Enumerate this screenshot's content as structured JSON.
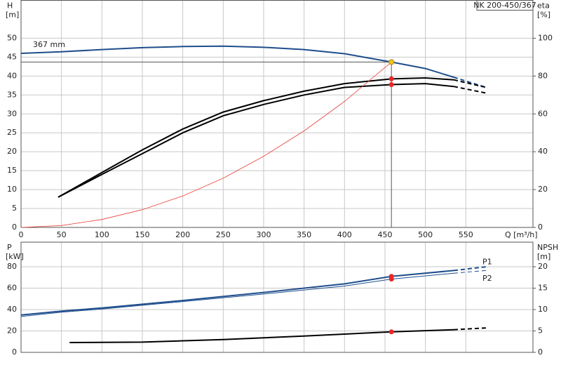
{
  "chart_data": [
    {
      "type": "line",
      "title": "NK 200-450/367",
      "ylabel": "H",
      "yunit": "[m]",
      "y2label": "eta",
      "y2unit": "[%]",
      "xlabel": "Q [m³/h]",
      "xlim": [
        0,
        633
      ],
      "xticks": [
        0,
        50,
        100,
        150,
        200,
        250,
        300,
        350,
        400,
        450,
        500,
        550
      ],
      "ylim": [
        0,
        60
      ],
      "yticks": [
        0,
        5,
        10,
        15,
        20,
        25,
        30,
        35,
        40,
        45,
        50
      ],
      "y2lim": [
        0,
        120
      ],
      "y2ticks": [
        0,
        20,
        40,
        60,
        80,
        100
      ],
      "grid": true,
      "series": [
        {
          "name": "367 mm",
          "color": "#1f4e8c",
          "width": 2,
          "x": [
            0,
            50,
            100,
            150,
            200,
            250,
            300,
            350,
            400,
            458,
            500,
            535
          ],
          "values": [
            46,
            46.4,
            47,
            47.5,
            47.8,
            47.9,
            47.6,
            47,
            45.9,
            43.7,
            42,
            39.7
          ]
        },
        {
          "color": "#1f4e8c",
          "width": 2,
          "dash": true,
          "x": [
            535,
            575
          ],
          "values": [
            39.7,
            37
          ]
        },
        {
          "color": "#000000",
          "width": 2,
          "axis": "y2",
          "x": [
            46,
            100,
            150,
            200,
            250,
            300,
            350,
            400,
            458,
            500,
            535
          ],
          "values": [
            16,
            29,
            41,
            52,
            61,
            67,
            72,
            76,
            78.5,
            79,
            78
          ]
        },
        {
          "color": "#000000",
          "width": 2,
          "axis": "y2",
          "dash": true,
          "x": [
            535,
            575
          ],
          "values": [
            78,
            74
          ]
        },
        {
          "color": "#000000",
          "width": 2,
          "axis": "y2",
          "x": [
            46,
            100,
            150,
            200,
            250,
            300,
            350,
            400,
            458,
            500,
            535
          ],
          "values": [
            16,
            28,
            39,
            50,
            59,
            65,
            70,
            74,
            75.5,
            76,
            74.5
          ]
        },
        {
          "color": "#000000",
          "width": 2,
          "axis": "y2",
          "dash": true,
          "x": [
            535,
            575
          ],
          "values": [
            74.5,
            71
          ]
        },
        {
          "color": "#e8423a",
          "width": 0.8,
          "x": [
            0,
            50,
            100,
            150,
            200,
            250,
            300,
            350,
            400,
            458
          ],
          "values": [
            0,
            0.5,
            2.1,
            4.7,
            8.3,
            13,
            18.8,
            25.5,
            33.3,
            43.7
          ]
        }
      ],
      "reference": {
        "x": 458,
        "y": 43.7
      },
      "markers": [
        {
          "x": 458,
          "y": 43.7,
          "color": "#f5c518"
        },
        {
          "x": 458,
          "y": 78.5,
          "color": "#e8262a",
          "axis": "y2"
        },
        {
          "x": 458,
          "y": 75.5,
          "color": "#e8262a",
          "axis": "y2"
        }
      ]
    },
    {
      "type": "line",
      "ylabel": "P",
      "yunit": "[kW]",
      "y2label": "NPSH",
      "y2unit": "[m]",
      "xlim": [
        0,
        633
      ],
      "xticks": [
        0,
        50,
        100,
        150,
        200,
        250,
        300,
        350,
        400,
        450,
        500,
        550
      ],
      "ylim": [
        0,
        103
      ],
      "yticks": [
        0,
        20,
        40,
        60,
        80
      ],
      "y2lim": [
        0,
        25.75
      ],
      "y2ticks": [
        0,
        5,
        10,
        15,
        20
      ],
      "grid": true,
      "series": [
        {
          "name": "P1",
          "color": "#1f4e8c",
          "width": 2,
          "x": [
            0,
            50,
            100,
            200,
            300,
            400,
            458,
            535
          ],
          "values": [
            35,
            38.5,
            41.5,
            48.5,
            56,
            64,
            71,
            76.5
          ]
        },
        {
          "color": "#1f4e8c",
          "width": 2,
          "dash": true,
          "x": [
            535,
            575
          ],
          "values": [
            76.5,
            80
          ]
        },
        {
          "name": "P2",
          "color": "#1f4e8c",
          "width": 1,
          "x": [
            0,
            50,
            100,
            200,
            300,
            400,
            458,
            535
          ],
          "values": [
            33.5,
            37.5,
            40.5,
            47.5,
            54.5,
            62,
            68.5,
            74
          ]
        },
        {
          "color": "#1f4e8c",
          "width": 1,
          "dash": true,
          "x": [
            535,
            575
          ],
          "values": [
            74,
            76.5
          ]
        },
        {
          "color": "#000000",
          "width": 2,
          "axis": "y2",
          "x": [
            60,
            150,
            250,
            350,
            458,
            535
          ],
          "values": [
            2.3,
            2.4,
            3,
            3.8,
            4.8,
            5.3
          ]
        },
        {
          "color": "#000000",
          "width": 2,
          "axis": "y2",
          "dash": true,
          "x": [
            535,
            575
          ],
          "values": [
            5.3,
            5.7
          ]
        }
      ],
      "markers": [
        {
          "x": 458,
          "y": 71,
          "color": "#e8262a"
        },
        {
          "x": 458,
          "y": 68.5,
          "color": "#e8262a"
        },
        {
          "x": 458,
          "y": 4.8,
          "color": "#e8262a",
          "axis": "y2"
        }
      ]
    }
  ]
}
